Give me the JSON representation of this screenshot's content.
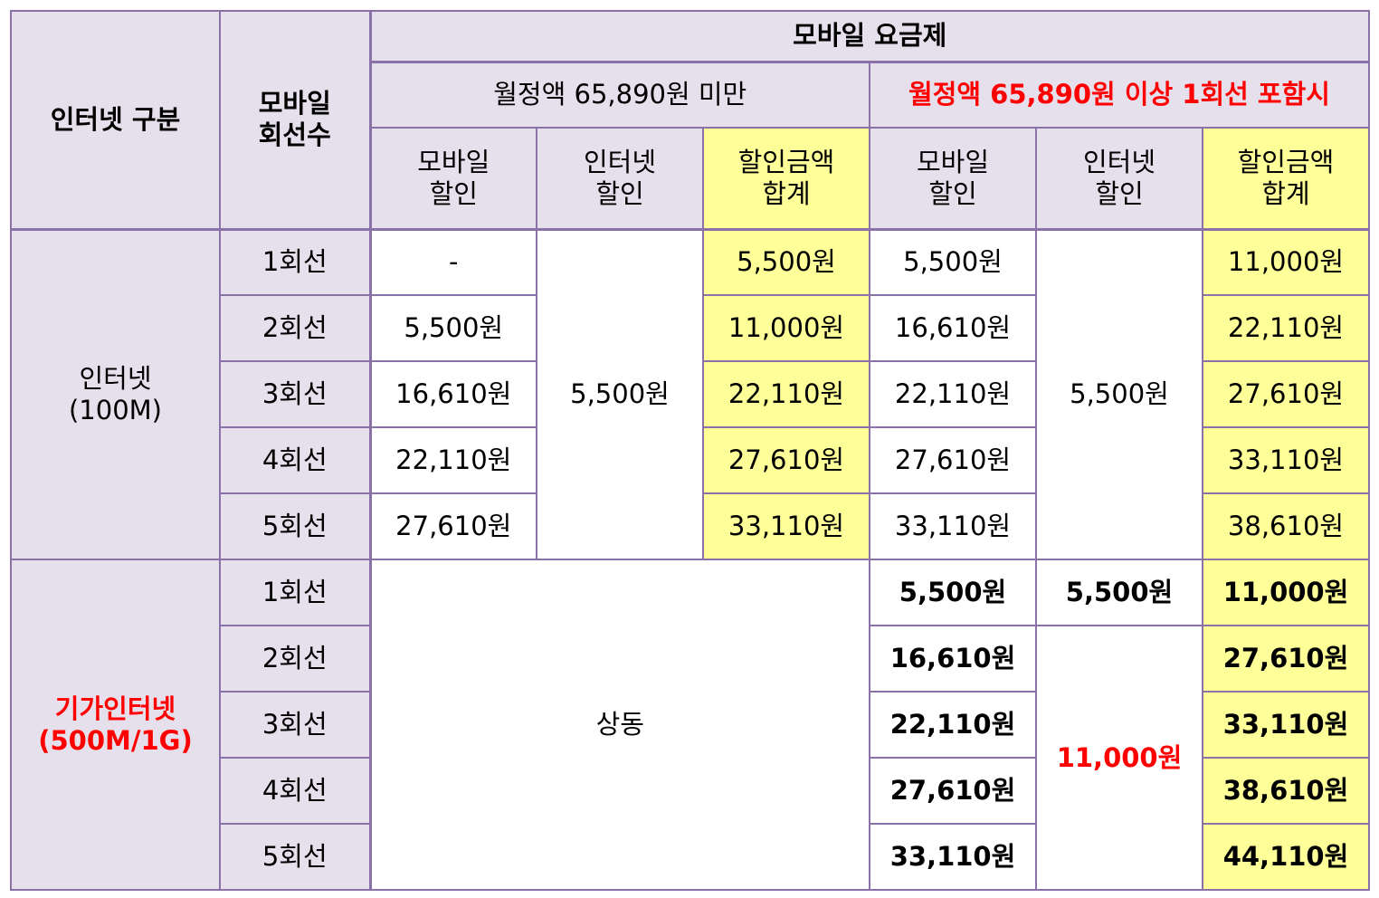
{
  "header": {
    "internet_type": "인터넷 구분",
    "mobile_lines_1": "모바일",
    "mobile_lines_2": "회선수",
    "mobile_plan": "모바일 요금제",
    "plan_under": "월정액 65,890원 미만",
    "plan_over": "월정액 65,890원 이상 1회선 포함시",
    "col_mobile_1": "모바일",
    "col_mobile_2": "할인",
    "col_internet_1": "인터넷",
    "col_internet_2": "할인",
    "col_total_1": "할인금액",
    "col_total_2": "합계"
  },
  "internet_100m": {
    "label_1": "인터넷",
    "label_2": "(100M)",
    "internet_discount_under": "5,500원",
    "internet_discount_over": "5,500원",
    "rows": [
      {
        "lines": "1회선",
        "mobile_under": "-",
        "total_under": "5,500원",
        "mobile_over": "5,500원",
        "total_over": "11,000원"
      },
      {
        "lines": "2회선",
        "mobile_under": "5,500원",
        "total_under": "11,000원",
        "mobile_over": "16,610원",
        "total_over": "22,110원"
      },
      {
        "lines": "3회선",
        "mobile_under": "16,610원",
        "total_under": "22,110원",
        "mobile_over": "22,110원",
        "total_over": "27,610원"
      },
      {
        "lines": "4회선",
        "mobile_under": "22,110원",
        "total_under": "27,610원",
        "mobile_over": "27,610원",
        "total_over": "33,110원"
      },
      {
        "lines": "5회선",
        "mobile_under": "27,610원",
        "total_under": "33,110원",
        "mobile_over": "33,110원",
        "total_over": "38,610원"
      }
    ]
  },
  "giga": {
    "label_1": "기가인터넷",
    "label_2": "(500M/1G)",
    "same": "상동",
    "internet_discount_first": "5,500원",
    "internet_discount_rest": "11,000원",
    "rows": [
      {
        "lines": "1회선",
        "mobile_over": "5,500원",
        "total_over": "11,000원"
      },
      {
        "lines": "2회선",
        "mobile_over": "16,610원",
        "total_over": "27,610원"
      },
      {
        "lines": "3회선",
        "mobile_over": "22,110원",
        "total_over": "33,110원"
      },
      {
        "lines": "4회선",
        "mobile_over": "27,610원",
        "total_over": "38,610원"
      },
      {
        "lines": "5회선",
        "mobile_over": "33,110원",
        "total_over": "44,110원"
      }
    ]
  },
  "colors": {
    "border": "#8a72a8",
    "header_bg": "#e6e0ec",
    "highlight_bg": "#ffff99",
    "accent_red": "#ff0000"
  }
}
